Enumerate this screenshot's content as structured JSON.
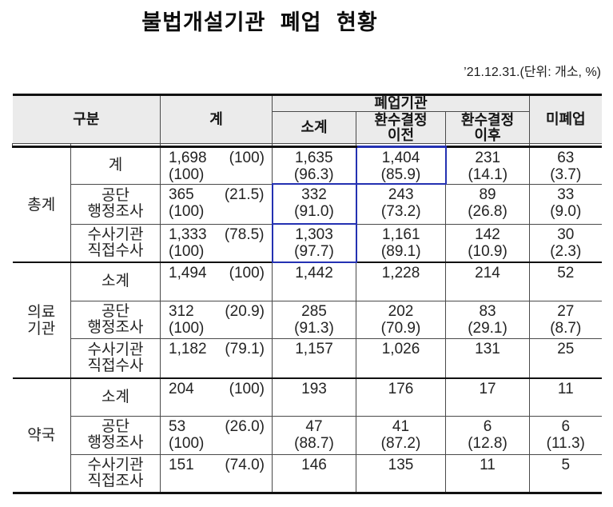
{
  "title": "불법개설기관 폐업 현황",
  "date_note": "’21.12.31.(단위: 개소, %)",
  "highlight_color": "#2431b2",
  "table": {
    "headers": {
      "gubun": "구분",
      "total": "계",
      "closed_group": "폐업기관",
      "subtotal": "소계",
      "before": "환수결정\n이전",
      "after": "환수결정\n이후",
      "not_closed": "미폐업"
    },
    "groups": [
      {
        "label": "총계",
        "rows": [
          {
            "label": "계",
            "cells": [
              {
                "v": "1,698",
                "p": "(100)",
                "b": "(100)"
              },
              {
                "v": "1,635",
                "p": "(96.3)"
              },
              {
                "v": "1,404",
                "p": "(85.9)",
                "hl": true
              },
              {
                "v": "231",
                "p": "(14.1)"
              },
              {
                "v": "63",
                "p": "(3.7)"
              }
            ]
          },
          {
            "label": "공단\n행정조사",
            "cells": [
              {
                "v": "365",
                "p": "(21.5)",
                "b": "(100)"
              },
              {
                "v": "332",
                "p": "(91.0)",
                "hl": true
              },
              {
                "v": "243",
                "p": "(73.2)"
              },
              {
                "v": "89",
                "p": "(26.8)"
              },
              {
                "v": "33",
                "p": "(9.0)"
              }
            ]
          },
          {
            "label": "수사기관\n직접수사",
            "cells": [
              {
                "v": "1,333",
                "p": "(78.5)",
                "b": "(100)"
              },
              {
                "v": "1,303",
                "p": "(97.7)",
                "hl": true
              },
              {
                "v": "1,161",
                "p": "(89.1)"
              },
              {
                "v": "142",
                "p": "(10.9)"
              },
              {
                "v": "30",
                "p": "(2.3)"
              }
            ]
          }
        ]
      },
      {
        "label": "의료\n기관",
        "rows": [
          {
            "label": "소계",
            "cells": [
              {
                "v": "1,494",
                "p": "(100)"
              },
              {
                "v": "1,442"
              },
              {
                "v": "1,228"
              },
              {
                "v": "214"
              },
              {
                "v": "52"
              }
            ]
          },
          {
            "label": "공단\n행정조사",
            "cells": [
              {
                "v": "312",
                "p": "(20.9)",
                "b": "(100)"
              },
              {
                "v": "285",
                "p": "(91.3)"
              },
              {
                "v": "202",
                "p": "(70.9)"
              },
              {
                "v": "83",
                "p": "(29.1)"
              },
              {
                "v": "27",
                "p": "(8.7)"
              }
            ]
          },
          {
            "label": "수사기관\n직접수사",
            "cells": [
              {
                "v": "1,182",
                "p": "(79.1)"
              },
              {
                "v": "1,157"
              },
              {
                "v": "1,026"
              },
              {
                "v": "131"
              },
              {
                "v": "25"
              }
            ]
          }
        ]
      },
      {
        "label": "약국",
        "rows": [
          {
            "label": "소계",
            "cells": [
              {
                "v": "204",
                "p": "(100)"
              },
              {
                "v": "193"
              },
              {
                "v": "176"
              },
              {
                "v": "17"
              },
              {
                "v": "11"
              }
            ]
          },
          {
            "label": "공단\n행정조사",
            "cells": [
              {
                "v": "53",
                "p": "(26.0)",
                "b": "(100)"
              },
              {
                "v": "47",
                "p": "(88.7)"
              },
              {
                "v": "41",
                "p": "(87.2)"
              },
              {
                "v": "6",
                "p": "(12.8)"
              },
              {
                "v": "6",
                "p": "(11.3)"
              }
            ]
          },
          {
            "label": "수사기관\n직접조사",
            "cells": [
              {
                "v": "151",
                "p": "(74.0)"
              },
              {
                "v": "146"
              },
              {
                "v": "135"
              },
              {
                "v": "11"
              },
              {
                "v": "5"
              }
            ]
          }
        ]
      }
    ]
  }
}
